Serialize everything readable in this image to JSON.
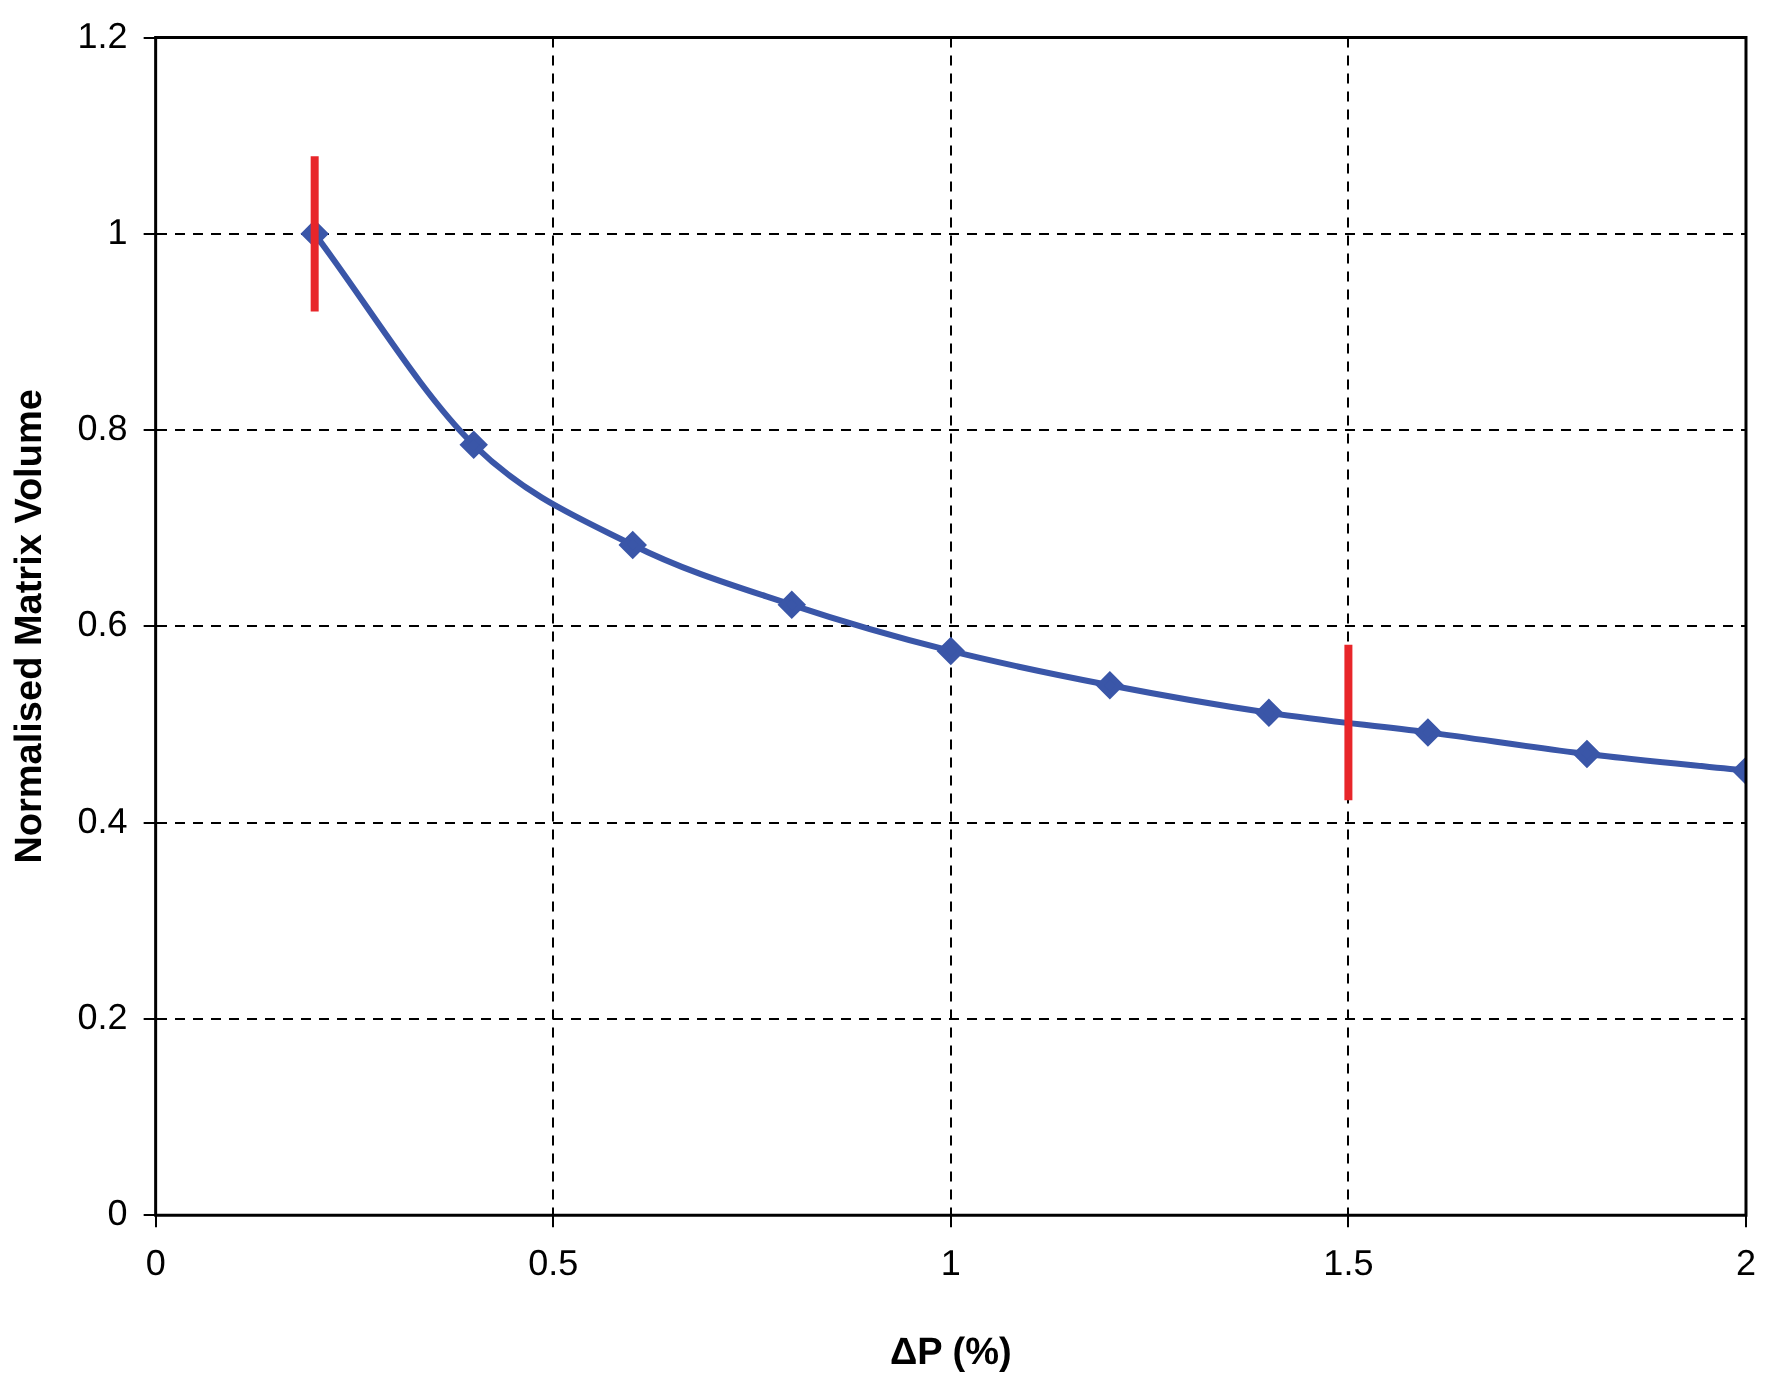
{
  "chart_data": {
    "type": "line",
    "xlabel": "ΔP (%)",
    "ylabel": "Normalised Matrix Volume",
    "x": [
      0.2,
      0.4,
      0.6,
      0.8,
      1.0,
      1.2,
      1.4,
      1.6,
      1.8,
      2.0
    ],
    "series": [
      {
        "color": "#3a56a8",
        "values": [
          1.0,
          0.785,
          0.683,
          0.622,
          0.575,
          0.54,
          0.512,
          0.492,
          0.47,
          0.453
        ]
      }
    ],
    "xlim": [
      0,
      2
    ],
    "xticks": [
      0,
      0.5,
      1,
      1.5,
      2
    ],
    "ylim": [
      0,
      1.2
    ],
    "yticks": [
      0,
      0.2,
      0.4,
      0.6,
      0.8,
      1,
      1.2
    ],
    "grid": true,
    "legend": false,
    "marker": "diamond",
    "line_style": "solid",
    "ref_lines": [
      {
        "axis": "x",
        "value": 0.2,
        "color": "#e8262a"
      },
      {
        "axis": "x",
        "value": 1.5,
        "color": "#e8262a"
      }
    ]
  }
}
